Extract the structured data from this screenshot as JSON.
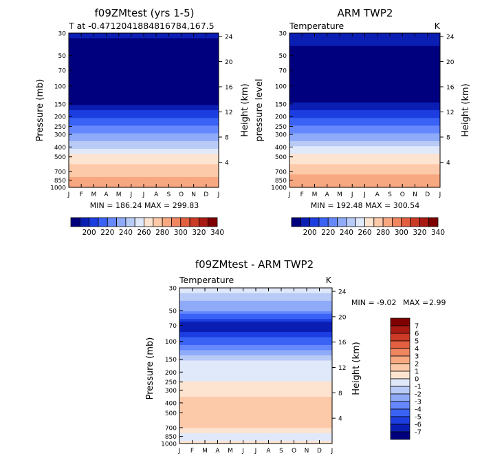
{
  "chart_data": [
    {
      "type": "heatmap",
      "title": "f09ZMtest (yrs 1-5)",
      "subtitle_left": "T at -0.4712041884816784,167.5",
      "subtitle_right": "",
      "ylabel": "Pressure (mb)",
      "ylabel_right": "Height (km)",
      "x_ticks": [
        "J",
        "F",
        "M",
        "A",
        "M",
        "J",
        "J",
        "A",
        "S",
        "O",
        "N",
        "D",
        "J"
      ],
      "p_ticks": [
        "30",
        "50",
        "70",
        "100",
        "150",
        "200",
        "250",
        "300",
        "400",
        "500",
        "700",
        "850",
        "1000"
      ],
      "km_ticks": [
        "24",
        "20",
        "16",
        "12",
        "8",
        "4"
      ],
      "stats": "MIN = 186.24  MAX = 299.83",
      "levels_hpa": [
        30,
        50,
        70,
        100,
        150,
        200,
        250,
        300,
        400,
        500,
        700,
        850,
        1000
      ],
      "values_k": [
        201,
        196,
        192,
        189,
        200,
        217,
        230,
        241,
        259,
        273,
        286,
        293,
        299
      ],
      "colorbar": {
        "labels": [
          "200",
          "220",
          "240",
          "260",
          "280",
          "300",
          "320",
          "340"
        ],
        "range": [
          190,
          350
        ],
        "colors": [
          "#00007f",
          "#0b1eb4",
          "#1c3ee0",
          "#3a62f5",
          "#6688ff",
          "#8eaaf8",
          "#b8cbf6",
          "#e0e9fa",
          "#fde4d0",
          "#fcc9a9",
          "#f8a881",
          "#f08660",
          "#e26040",
          "#cb3a25",
          "#a81a12",
          "#7f0000"
        ]
      }
    },
    {
      "type": "heatmap",
      "title": "ARM TWP2",
      "subtitle_left": "Temperature",
      "subtitle_right": "K",
      "ylabel": "pressure level",
      "ylabel_right": "Height (km)",
      "x_ticks": [
        "J",
        "F",
        "M",
        "A",
        "M",
        "J",
        "J",
        "A",
        "S",
        "O",
        "N",
        "D",
        "J"
      ],
      "p_ticks": [
        "30",
        "50",
        "70",
        "100",
        "150",
        "200",
        "250",
        "300",
        "400",
        "500",
        "700",
        "850",
        "1000"
      ],
      "km_ticks": [
        "24",
        "20",
        "16",
        "12",
        "8",
        "4"
      ],
      "stats": "MIN = 192.48  MAX = 300.54",
      "levels_hpa": [
        30,
        50,
        70,
        100,
        150,
        200,
        250,
        300,
        400,
        500,
        700,
        850,
        1000
      ],
      "values_k": [
        203,
        198,
        193,
        190,
        201,
        218,
        231,
        242,
        260,
        274,
        287,
        294,
        300
      ],
      "colorbar": {
        "labels": [
          "200",
          "220",
          "240",
          "260",
          "280",
          "300",
          "320",
          "340"
        ],
        "range": [
          190,
          350
        ],
        "colors": [
          "#00007f",
          "#0b1eb4",
          "#1c3ee0",
          "#3a62f5",
          "#6688ff",
          "#8eaaf8",
          "#b8cbf6",
          "#e0e9fa",
          "#fde4d0",
          "#fcc9a9",
          "#f8a881",
          "#f08660",
          "#e26040",
          "#cb3a25",
          "#a81a12",
          "#7f0000"
        ]
      }
    },
    {
      "type": "heatmap",
      "title": "f09ZMtest - ARM TWP2",
      "subtitle_left": "Temperature",
      "subtitle_right": "K",
      "ylabel": "Pressure (mb)",
      "ylabel_right": "Height (km)",
      "x_ticks": [
        "J",
        "F",
        "M",
        "A",
        "M",
        "J",
        "J",
        "A",
        "S",
        "O",
        "N",
        "D",
        "J"
      ],
      "p_ticks": [
        "30",
        "50",
        "70",
        "100",
        "150",
        "200",
        "250",
        "300",
        "400",
        "500",
        "700",
        "850",
        "1000"
      ],
      "km_ticks": [
        "24",
        "20",
        "16",
        "12",
        "8",
        "4"
      ],
      "stats_min_label": "MIN =",
      "stats_min_value": "-9.02",
      "stats_max_label": "MAX =",
      "stats_max_value": "2.99",
      "levels_hpa": [
        30,
        50,
        70,
        100,
        150,
        200,
        300,
        500,
        700,
        850,
        1000
      ],
      "values_k": [
        -0.5,
        -3.0,
        -7.0,
        -4.5,
        -1.0,
        -0.5,
        0.5,
        2.0,
        1.0,
        -0.5,
        0.5
      ],
      "colorbar": {
        "labels": [
          "7",
          "6",
          "5",
          "4",
          "3",
          "2",
          "1",
          "0",
          "-1",
          "-2",
          "-3",
          "-4",
          "-5",
          "-6",
          "-7"
        ],
        "range": [
          -8,
          8
        ],
        "colors": [
          "#7f0000",
          "#a81a12",
          "#cb3a25",
          "#e26040",
          "#f08660",
          "#f8a881",
          "#fcc9a9",
          "#fde4d0",
          "#e0e9fa",
          "#b8cbf6",
          "#8eaaf8",
          "#6688ff",
          "#3a62f5",
          "#1c3ee0",
          "#0b1eb4",
          "#00007f"
        ]
      }
    }
  ]
}
